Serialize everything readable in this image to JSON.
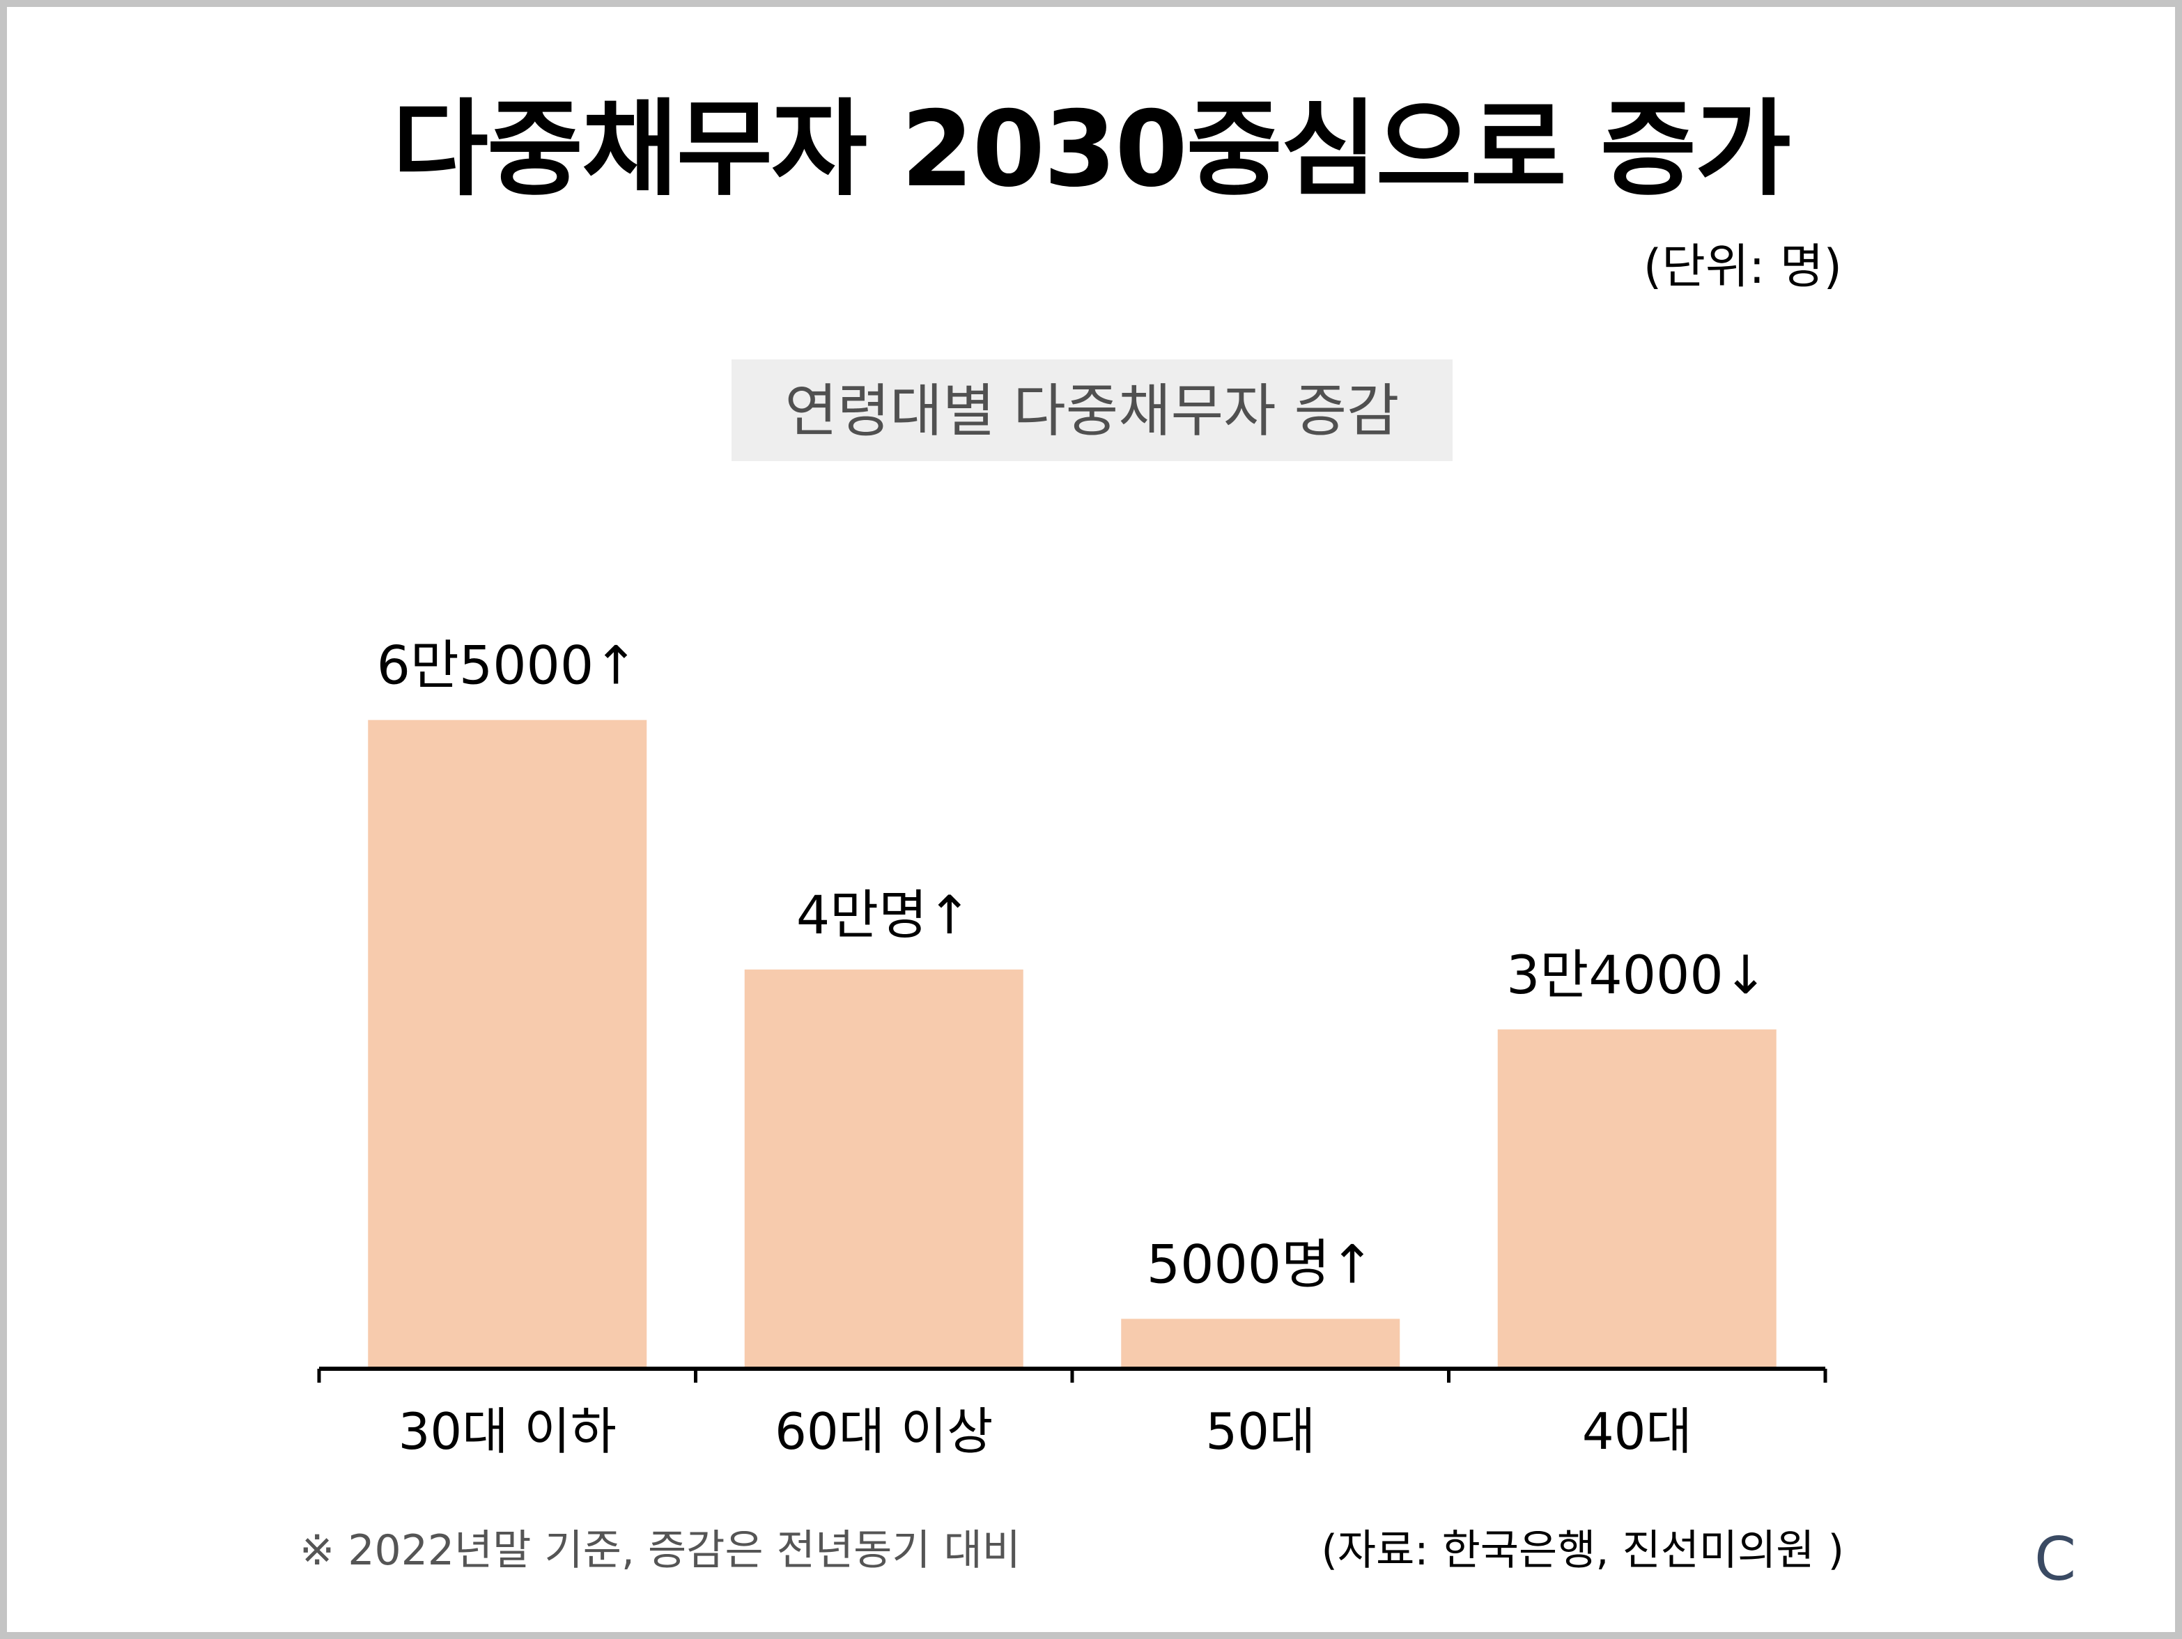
{
  "title": "다중채무자 2030중심으로 증가",
  "unit_label": "(단위: 명)",
  "footnote": "※ 2022년말 기준, 증감은 전년동기 대비",
  "source": "(자료: 한국은행, 진선미의원 )",
  "logo_text": "C",
  "colors": {
    "bar": "#f7cbad",
    "title": "#000000",
    "subtitle_bg": "#eeeeee",
    "subtitle_text": "#505050",
    "logo": "#3a4a63"
  },
  "chart_data": {
    "type": "bar",
    "title": "연령대별 다중채무자 증감",
    "xlabel": "",
    "ylabel": "",
    "categories": [
      "30대 이하",
      "60대 이상",
      "50대",
      "40대"
    ],
    "values": [
      65000,
      40000,
      5000,
      34000
    ],
    "data_labels": [
      "6만5000↑",
      "4만명↑",
      "5000명↑",
      "3만4000↓"
    ],
    "direction": [
      "up",
      "up",
      "up",
      "down"
    ],
    "ylim": [
      0,
      70000
    ],
    "grid": false,
    "legend": "none"
  }
}
